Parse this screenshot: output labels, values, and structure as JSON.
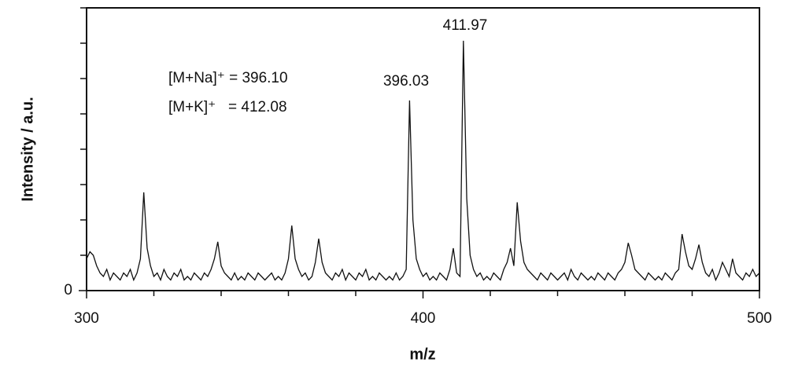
{
  "chart_data": {
    "type": "line",
    "x_label": "m/z",
    "y_label": "Intensity / a.u.",
    "annotations": [
      "396.03",
      "411.97"
    ],
    "legend_text": [
      "[M+Na]⁺ = 396.10",
      "[M+K]⁺   = 412.08"
    ],
    "color": "#111111",
    "xlim": [
      300,
      500
    ],
    "xticks": [
      300,
      400,
      500
    ],
    "xticks_minor": [
      320,
      340,
      360,
      380,
      420,
      440,
      460,
      480
    ],
    "ylim": [
      0,
      8
    ],
    "yticks": [
      0
    ],
    "yticks_minor": [
      1,
      2,
      3,
      4,
      5,
      6,
      7,
      8
    ],
    "x": [
      300,
      301,
      302,
      303,
      304,
      305,
      306,
      307,
      308,
      309,
      310,
      311,
      312,
      313,
      314,
      315,
      316,
      317,
      318,
      319,
      320,
      321,
      322,
      323,
      324,
      325,
      326,
      327,
      328,
      329,
      330,
      331,
      332,
      333,
      334,
      335,
      336,
      337,
      338,
      339,
      340,
      341,
      342,
      343,
      344,
      345,
      346,
      347,
      348,
      349,
      350,
      351,
      352,
      353,
      354,
      355,
      356,
      357,
      358,
      359,
      360,
      361,
      362,
      363,
      364,
      365,
      366,
      367,
      368,
      369,
      370,
      371,
      372,
      373,
      374,
      375,
      376,
      377,
      378,
      379,
      380,
      381,
      382,
      383,
      384,
      385,
      386,
      387,
      388,
      389,
      390,
      391,
      392,
      393,
      394,
      395,
      396,
      397,
      398,
      399,
      400,
      401,
      402,
      403,
      404,
      405,
      406,
      407,
      408,
      409,
      410,
      411,
      412,
      413,
      414,
      415,
      416,
      417,
      418,
      419,
      420,
      421,
      422,
      423,
      424,
      425,
      426,
      427,
      428,
      429,
      430,
      431,
      432,
      433,
      434,
      435,
      436,
      437,
      438,
      439,
      440,
      441,
      442,
      443,
      444,
      445,
      446,
      447,
      448,
      449,
      450,
      451,
      452,
      453,
      454,
      455,
      456,
      457,
      458,
      459,
      460,
      461,
      462,
      463,
      464,
      465,
      466,
      467,
      468,
      469,
      470,
      471,
      472,
      473,
      474,
      475,
      476,
      477,
      478,
      479,
      480,
      481,
      482,
      483,
      484,
      485,
      486,
      487,
      488,
      489,
      490,
      491,
      492,
      493,
      494,
      495,
      496,
      497,
      498,
      499,
      500
    ],
    "values": [
      0.9,
      1.1,
      1.0,
      0.7,
      0.5,
      0.4,
      0.6,
      0.3,
      0.5,
      0.4,
      0.3,
      0.5,
      0.4,
      0.6,
      0.3,
      0.5,
      0.9,
      2.78,
      1.2,
      0.7,
      0.4,
      0.5,
      0.3,
      0.6,
      0.4,
      0.3,
      0.5,
      0.4,
      0.6,
      0.3,
      0.4,
      0.3,
      0.5,
      0.4,
      0.3,
      0.5,
      0.4,
      0.6,
      0.9,
      1.38,
      0.7,
      0.5,
      0.4,
      0.3,
      0.5,
      0.3,
      0.4,
      0.3,
      0.5,
      0.4,
      0.3,
      0.5,
      0.4,
      0.3,
      0.4,
      0.5,
      0.3,
      0.4,
      0.3,
      0.5,
      0.9,
      1.84,
      0.9,
      0.6,
      0.4,
      0.5,
      0.3,
      0.4,
      0.8,
      1.47,
      0.8,
      0.5,
      0.4,
      0.3,
      0.5,
      0.4,
      0.6,
      0.3,
      0.5,
      0.4,
      0.3,
      0.5,
      0.4,
      0.6,
      0.3,
      0.4,
      0.3,
      0.5,
      0.4,
      0.3,
      0.4,
      0.3,
      0.5,
      0.3,
      0.4,
      0.6,
      5.38,
      2.0,
      0.9,
      0.6,
      0.4,
      0.5,
      0.3,
      0.4,
      0.3,
      0.5,
      0.4,
      0.3,
      0.6,
      1.2,
      0.5,
      0.4,
      7.07,
      2.6,
      1.0,
      0.6,
      0.4,
      0.5,
      0.3,
      0.4,
      0.3,
      0.5,
      0.4,
      0.3,
      0.6,
      0.8,
      1.2,
      0.7,
      2.5,
      1.4,
      0.8,
      0.6,
      0.5,
      0.4,
      0.3,
      0.5,
      0.4,
      0.3,
      0.5,
      0.4,
      0.3,
      0.4,
      0.5,
      0.3,
      0.6,
      0.4,
      0.3,
      0.5,
      0.4,
      0.3,
      0.4,
      0.3,
      0.5,
      0.4,
      0.3,
      0.5,
      0.4,
      0.3,
      0.5,
      0.6,
      0.8,
      1.35,
      1.0,
      0.6,
      0.5,
      0.4,
      0.3,
      0.5,
      0.4,
      0.3,
      0.4,
      0.3,
      0.5,
      0.4,
      0.3,
      0.5,
      0.6,
      1.6,
      1.1,
      0.7,
      0.6,
      0.9,
      1.3,
      0.8,
      0.5,
      0.4,
      0.6,
      0.3,
      0.5,
      0.8,
      0.6,
      0.4,
      0.9,
      0.5,
      0.4,
      0.3,
      0.5,
      0.4,
      0.6,
      0.4,
      0.5
    ]
  }
}
